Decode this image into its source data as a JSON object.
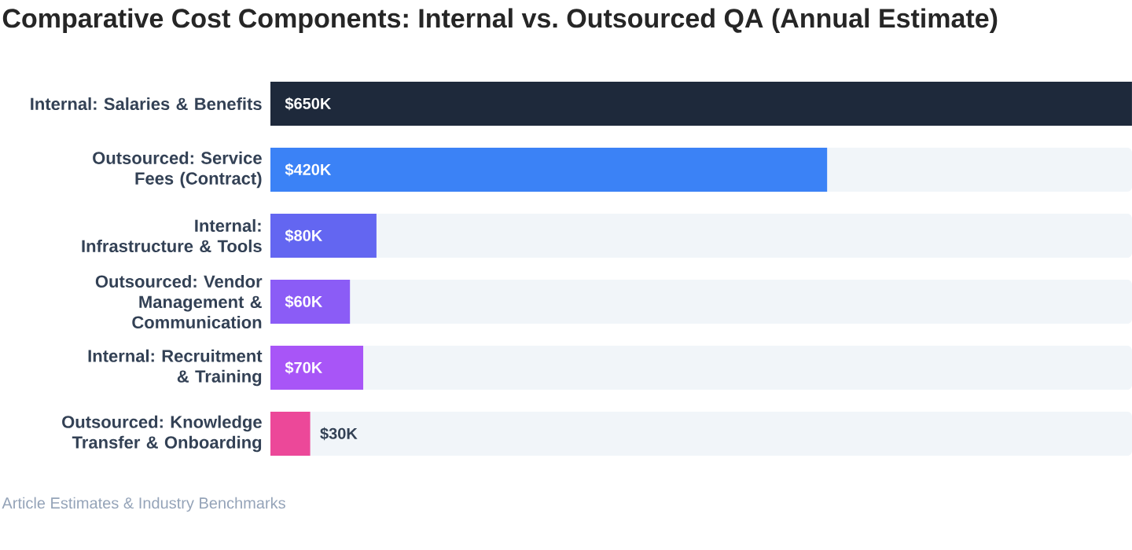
{
  "chart_data": {
    "type": "bar",
    "orientation": "horizontal",
    "title": "Comparative Cost Components: Internal vs. Outsourced QA (Annual Estimate)",
    "categories": [
      "Internal: Salaries & Benefits",
      "Outsourced: Service Fees (Contract)",
      "Internal: Infrastructure & Tools",
      "Outsourced: Vendor Management & Communication",
      "Internal: Recruitment & Training",
      "Outsourced: Knowledge Transfer & Onboarding"
    ],
    "values": [
      650,
      420,
      80,
      60,
      70,
      30
    ],
    "value_labels": [
      "$650K",
      "$420K",
      "$80K",
      "$60K",
      "$70K",
      "$30K"
    ],
    "colors": [
      "#1e293b",
      "#3b82f6",
      "#6366f1",
      "#8b5cf6",
      "#a855f7",
      "#ec4899"
    ],
    "annotations": [
      "Article Estimates & Industry Benchmarks"
    ]
  }
}
